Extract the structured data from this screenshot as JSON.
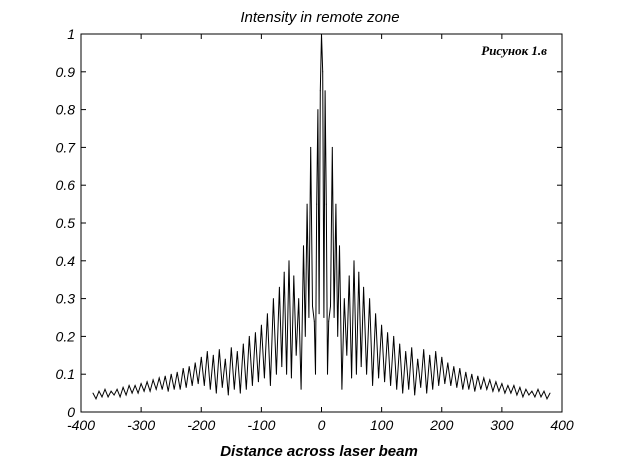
{
  "chart_data": {
    "type": "line",
    "title": "Intensity in remote zone",
    "xlabel": "Distance across laser beam",
    "ylabel": "",
    "annotation": "Рисунок 1.в",
    "xlim": [
      -400,
      400
    ],
    "ylim": [
      0,
      1
    ],
    "xticks": [
      -400,
      -300,
      -200,
      -100,
      0,
      100,
      200,
      300,
      400
    ],
    "yticks": [
      0,
      0.1,
      0.2,
      0.3,
      0.4,
      0.5,
      0.6,
      0.7,
      0.8,
      0.9,
      1
    ],
    "xtick_labels": [
      "-400",
      "-300",
      "-200",
      "-100",
      "0",
      "100",
      "200",
      "300",
      "400"
    ],
    "ytick_labels": [
      "0",
      "0.1",
      "0.2",
      "0.3",
      "0.4",
      "0.5",
      "0.6",
      "0.7",
      "0.8",
      "0.9",
      "1"
    ],
    "grid": false,
    "line_color": "#000000",
    "series": [
      {
        "x": [
          -380,
          -375,
          -370,
          -365,
          -360,
          -355,
          -350,
          -345,
          -340,
          -335,
          -330,
          -325,
          -320,
          -315,
          -310,
          -305,
          -300,
          -295,
          -290,
          -285,
          -280,
          -275,
          -270,
          -265,
          -260,
          -255,
          -250,
          -245,
          -240,
          -235,
          -230,
          -225,
          -220,
          -215,
          -210,
          -205,
          -200,
          -195,
          -190,
          -185,
          -180,
          -175,
          -170,
          -165,
          -160,
          -155,
          -150,
          -145,
          -140,
          -135,
          -130,
          -125,
          -120,
          -115,
          -110,
          -105,
          -100,
          -95,
          -90,
          -85,
          -80,
          -75,
          -70,
          -66,
          -62,
          -58,
          -54,
          -50,
          -46,
          -42,
          -38,
          -34,
          -30,
          -27,
          -24,
          -21,
          -18,
          -15,
          -12,
          -10,
          -8,
          -6,
          -4,
          -2,
          0,
          2,
          4,
          6,
          8,
          10,
          12,
          15,
          18,
          21,
          24,
          27,
          30,
          34,
          38,
          42,
          46,
          50,
          54,
          58,
          62,
          66,
          70,
          75,
          80,
          85,
          90,
          95,
          100,
          105,
          110,
          115,
          120,
          125,
          130,
          135,
          140,
          145,
          150,
          155,
          160,
          165,
          170,
          175,
          180,
          185,
          190,
          195,
          200,
          205,
          210,
          215,
          220,
          225,
          230,
          235,
          240,
          245,
          250,
          255,
          260,
          265,
          270,
          275,
          280,
          285,
          290,
          295,
          300,
          305,
          310,
          315,
          320,
          325,
          330,
          335,
          340,
          345,
          350,
          355,
          360,
          365,
          370,
          375,
          380
        ],
        "values": [
          0.05,
          0.035,
          0.055,
          0.04,
          0.06,
          0.04,
          0.055,
          0.045,
          0.06,
          0.04,
          0.065,
          0.045,
          0.07,
          0.05,
          0.07,
          0.05,
          0.075,
          0.055,
          0.08,
          0.055,
          0.085,
          0.06,
          0.09,
          0.06,
          0.095,
          0.055,
          0.1,
          0.06,
          0.105,
          0.06,
          0.115,
          0.065,
          0.12,
          0.07,
          0.13,
          0.075,
          0.145,
          0.07,
          0.16,
          0.06,
          0.15,
          0.05,
          0.165,
          0.065,
          0.14,
          0.045,
          0.17,
          0.06,
          0.16,
          0.05,
          0.18,
          0.06,
          0.2,
          0.07,
          0.21,
          0.08,
          0.23,
          0.09,
          0.26,
          0.07,
          0.3,
          0.1,
          0.33,
          0.12,
          0.37,
          0.1,
          0.4,
          0.09,
          0.36,
          0.15,
          0.3,
          0.06,
          0.44,
          0.2,
          0.55,
          0.25,
          0.7,
          0.28,
          0.24,
          0.1,
          0.55,
          0.8,
          0.26,
          0.85,
          1.0,
          0.9,
          0.25,
          0.85,
          0.55,
          0.1,
          0.24,
          0.28,
          0.7,
          0.25,
          0.55,
          0.2,
          0.44,
          0.06,
          0.3,
          0.15,
          0.36,
          0.09,
          0.4,
          0.1,
          0.37,
          0.12,
          0.33,
          0.1,
          0.3,
          0.07,
          0.26,
          0.09,
          0.23,
          0.08,
          0.21,
          0.07,
          0.2,
          0.06,
          0.18,
          0.05,
          0.16,
          0.06,
          0.17,
          0.045,
          0.14,
          0.065,
          0.165,
          0.05,
          0.15,
          0.06,
          0.16,
          0.07,
          0.145,
          0.075,
          0.13,
          0.07,
          0.12,
          0.065,
          0.115,
          0.06,
          0.105,
          0.06,
          0.1,
          0.055,
          0.095,
          0.06,
          0.09,
          0.06,
          0.085,
          0.055,
          0.08,
          0.055,
          0.075,
          0.05,
          0.07,
          0.05,
          0.07,
          0.045,
          0.065,
          0.04,
          0.06,
          0.045,
          0.055,
          0.04,
          0.06,
          0.04,
          0.055,
          0.035,
          0.05
        ]
      }
    ]
  }
}
